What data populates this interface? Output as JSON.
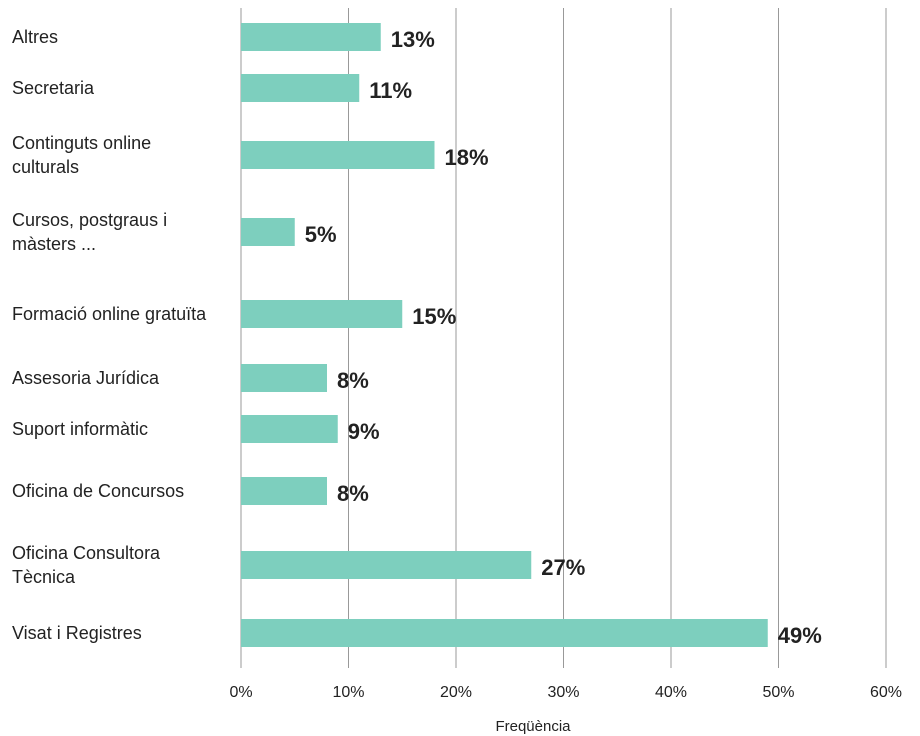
{
  "chart_data": {
    "type": "bar",
    "orientation": "horizontal",
    "x_label": "Freqüència",
    "categories": [
      "Altres",
      "Secretaria",
      "Continguts online culturals",
      "Cursos, postgraus i màsters ...",
      "Formació online gratuïta",
      "Assesoria Jurídica",
      "Suport informàtic",
      "Oficina de Concursos",
      "Oficina Consultora Tècnica",
      "Visat i Registres"
    ],
    "values": [
      13,
      11,
      18,
      5,
      15,
      8,
      9,
      8,
      27,
      49
    ],
    "value_labels": [
      "13%",
      "11%",
      "18%",
      "5%",
      "15%",
      "8%",
      "9%",
      "8%",
      "27%",
      "49%"
    ],
    "color": "#7dcfbe",
    "xlim": [
      0,
      60
    ],
    "xticks": [
      {
        "value": 0,
        "label": "0%"
      },
      {
        "value": 10,
        "label": "10%"
      },
      {
        "value": 20,
        "label": "20%"
      },
      {
        "value": 30,
        "label": "30%"
      },
      {
        "value": 40,
        "label": "40%"
      },
      {
        "value": 50,
        "label": "50%"
      },
      {
        "value": 60,
        "label": "60%"
      }
    ],
    "grid": true
  }
}
